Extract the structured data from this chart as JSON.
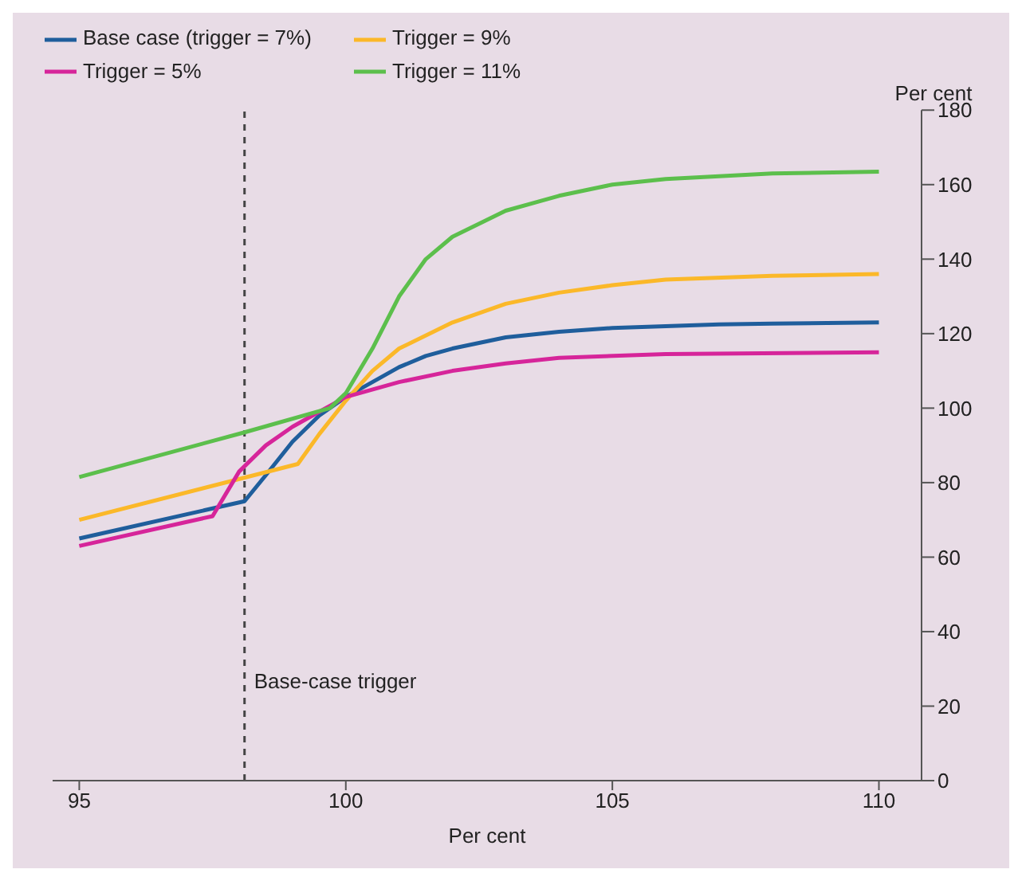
{
  "chart_data": {
    "type": "line",
    "xlabel": "Per cent",
    "ylabel": "Per cent",
    "xlim": [
      94.5,
      110.8
    ],
    "xticks": [
      95,
      100,
      105,
      110
    ],
    "ylim": [
      0,
      180
    ],
    "yticks": [
      0,
      20,
      40,
      60,
      80,
      100,
      120,
      140,
      160,
      180
    ],
    "legend": "top left",
    "grid": false,
    "marker": "none",
    "line_style": "solid",
    "ref_lines": [
      {
        "axis": "x",
        "value": 98.1,
        "label": "Base-case trigger",
        "line_style": "dashed",
        "color": "#444444"
      }
    ],
    "series": [
      {
        "name": "Base case (trigger = 7%)",
        "color": "#1f5e9c",
        "x": [
          95,
          98.1,
          98.5,
          99,
          99.5,
          100,
          100.5,
          101,
          101.5,
          102,
          103,
          104,
          105,
          106,
          107,
          108,
          110
        ],
        "values": [
          65,
          75,
          82,
          91,
          98,
          103,
          107,
          111,
          114,
          116,
          119,
          120.5,
          121.5,
          122,
          122.5,
          122.7,
          123
        ]
      },
      {
        "name": "Trigger = 9%",
        "color": "#fbb829",
        "x": [
          95,
          99.1,
          99.5,
          100,
          100.5,
          101,
          102,
          103,
          104,
          105,
          106,
          108,
          110
        ],
        "values": [
          70,
          85,
          93,
          102,
          110,
          116,
          123,
          128,
          131,
          133,
          134.5,
          135.5,
          136
        ]
      },
      {
        "name": "Trigger = 5%",
        "color": "#d6259a",
        "x": [
          95,
          97.5,
          98,
          98.5,
          99,
          99.5,
          100,
          101,
          102,
          103,
          104,
          106,
          110
        ],
        "values": [
          63,
          71,
          83,
          90,
          95,
          99,
          103,
          107,
          110,
          112,
          113.5,
          114.5,
          115
        ]
      },
      {
        "name": "Trigger = 11%",
        "color": "#5cbf4c",
        "x": [
          95,
          98.1,
          99.7,
          100,
          100.5,
          101,
          101.5,
          102,
          103,
          104,
          105,
          106,
          108,
          110
        ],
        "values": [
          81.5,
          93.5,
          100,
          104,
          116,
          130,
          140,
          146,
          153,
          157,
          160,
          161.5,
          163,
          163.5
        ]
      }
    ]
  }
}
